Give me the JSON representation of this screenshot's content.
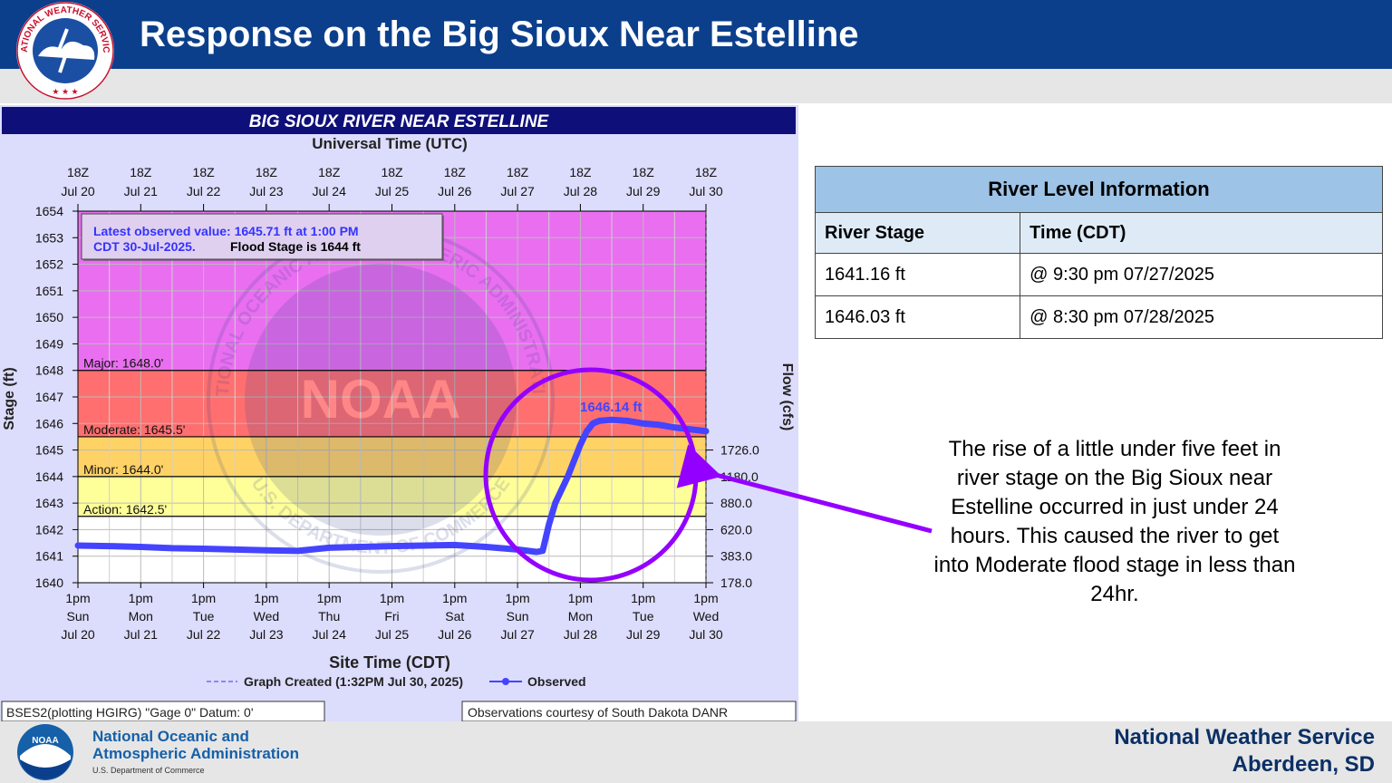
{
  "slide": {
    "title": "Response on the Big Sioux Near Estelline",
    "logo_text": "NATIONAL WEATHER SERVICE",
    "office_line1": "National Weather Service",
    "office_line2": "Aberdeen, SD",
    "noaa_name_line1": "National Oceanic and",
    "noaa_name_line2": "Atmospheric Administration",
    "noaa_dept": "U.S. Department of Commerce",
    "noaa_logo_text": "NOAA",
    "note": "The rise of a little under five feet in river stage on the Big Sioux near Estelline occurred in just under 24 hours. This caused the river to get into Moderate flood stage in less than 24hr."
  },
  "river_table": {
    "title": "River Level Information",
    "columns": [
      "River Stage",
      "Time (CDT)"
    ],
    "rows": [
      [
        "1641.16 ft",
        "@ 9:30 pm 07/27/2025"
      ],
      [
        "1646.03 ft",
        "@ 8:30 pm 07/28/2025"
      ]
    ]
  },
  "chart_data": {
    "type": "line",
    "title": "BIG SIOUX RIVER NEAR ESTELLINE",
    "top_axis_title": "Universal Time (UTC)",
    "xlabel": "Site Time (CDT)",
    "ylabel": "Stage (ft)",
    "y2label": "Flow (cfs)",
    "ylim": [
      1640,
      1654
    ],
    "y_ticks": [
      1640,
      1641,
      1642,
      1643,
      1644,
      1645,
      1646,
      1647,
      1648,
      1649,
      1650,
      1651,
      1652,
      1653,
      1654
    ],
    "xlim": [
      0,
      10
    ],
    "x_unit_note": "days after 1pm CDT Sun Jul 20",
    "top_ticks": [
      {
        "a": "18Z",
        "b": "Jul 20"
      },
      {
        "a": "18Z",
        "b": "Jul 21"
      },
      {
        "a": "18Z",
        "b": "Jul 22"
      },
      {
        "a": "18Z",
        "b": "Jul 23"
      },
      {
        "a": "18Z",
        "b": "Jul 24"
      },
      {
        "a": "18Z",
        "b": "Jul 25"
      },
      {
        "a": "18Z",
        "b": "Jul 26"
      },
      {
        "a": "18Z",
        "b": "Jul 27"
      },
      {
        "a": "18Z",
        "b": "Jul 28"
      },
      {
        "a": "18Z",
        "b": "Jul 29"
      },
      {
        "a": "18Z",
        "b": "Jul 30"
      }
    ],
    "bottom_ticks": [
      {
        "a": "1pm",
        "b": "Sun",
        "c": "Jul 20"
      },
      {
        "a": "1pm",
        "b": "Mon",
        "c": "Jul 21"
      },
      {
        "a": "1pm",
        "b": "Tue",
        "c": "Jul 22"
      },
      {
        "a": "1pm",
        "b": "Wed",
        "c": "Jul 23"
      },
      {
        "a": "1pm",
        "b": "Thu",
        "c": "Jul 24"
      },
      {
        "a": "1pm",
        "b": "Fri",
        "c": "Jul 25"
      },
      {
        "a": "1pm",
        "b": "Sat",
        "c": "Jul 26"
      },
      {
        "a": "1pm",
        "b": "Sun",
        "c": "Jul 27"
      },
      {
        "a": "1pm",
        "b": "Mon",
        "c": "Jul 28"
      },
      {
        "a": "1pm",
        "b": "Tue",
        "c": "Jul 29"
      },
      {
        "a": "1pm",
        "b": "Wed",
        "c": "Jul 30"
      }
    ],
    "flow_ticks": [
      {
        "stage": 1640,
        "label": "178.0"
      },
      {
        "stage": 1641,
        "label": "383.0"
      },
      {
        "stage": 1642,
        "label": "620.0"
      },
      {
        "stage": 1643,
        "label": "880.0"
      },
      {
        "stage": 1644,
        "label": "1180.0"
      },
      {
        "stage": 1645,
        "label": "1726.0"
      }
    ],
    "flood_categories": [
      {
        "label": "Major: 1648.0'",
        "stage": 1648.0,
        "color": "#ff6f6f"
      },
      {
        "label": "Moderate: 1645.5'",
        "stage": 1645.5,
        "color": "#ffd266"
      },
      {
        "label": "Minor: 1644.0'",
        "stage": 1644.0,
        "color": "#ffff99"
      },
      {
        "label": "Action: 1642.5'",
        "stage": 1642.5,
        "color": "#ffffff"
      }
    ],
    "above_major_color": "#e96ff0",
    "latest_line1": "Latest observed value: 1645.71 ft at 1:00 PM",
    "latest_line2": "CDT 30-Jul-2025.",
    "flood_stage_text": "Flood Stage is 1644 ft",
    "peak_label": "1646.14 ft",
    "legend_created": "Graph Created (1:32PM Jul 30, 2025)",
    "legend_observed": "Observed",
    "footer_left": "BSES2(plotting HGIRG) \"Gage 0\" Datum: 0'",
    "footer_right": "Observations courtesy of South Dakota DANR",
    "watermark_text": "NATIONAL OCEANIC AND ATMOSPHERIC ADMINISTRATION",
    "watermark_bottom": "U.S. DEPARTMENT OF COMMERCE",
    "watermark_center": "NOAA",
    "series": [
      {
        "name": "Observed",
        "color": "#4444ff",
        "points": [
          [
            0.0,
            1641.4
          ],
          [
            0.5,
            1641.38
          ],
          [
            1.0,
            1641.35
          ],
          [
            1.5,
            1641.3
          ],
          [
            2.0,
            1641.28
          ],
          [
            2.5,
            1641.25
          ],
          [
            3.0,
            1641.22
          ],
          [
            3.5,
            1641.2
          ],
          [
            4.0,
            1641.32
          ],
          [
            4.5,
            1641.35
          ],
          [
            5.0,
            1641.38
          ],
          [
            5.5,
            1641.4
          ],
          [
            6.0,
            1641.42
          ],
          [
            6.5,
            1641.35
          ],
          [
            7.0,
            1641.25
          ],
          [
            7.3,
            1641.16
          ],
          [
            7.4,
            1641.2
          ],
          [
            7.5,
            1642.2
          ],
          [
            7.6,
            1643.0
          ],
          [
            7.7,
            1643.5
          ],
          [
            7.8,
            1644.0
          ],
          [
            7.9,
            1644.6
          ],
          [
            8.0,
            1645.2
          ],
          [
            8.1,
            1645.7
          ],
          [
            8.2,
            1646.0
          ],
          [
            8.3,
            1646.1
          ],
          [
            8.5,
            1646.14
          ],
          [
            8.75,
            1646.1
          ],
          [
            9.0,
            1646.0
          ],
          [
            9.25,
            1645.95
          ],
          [
            9.5,
            1645.85
          ],
          [
            9.75,
            1645.78
          ],
          [
            10.0,
            1645.71
          ]
        ]
      }
    ]
  }
}
